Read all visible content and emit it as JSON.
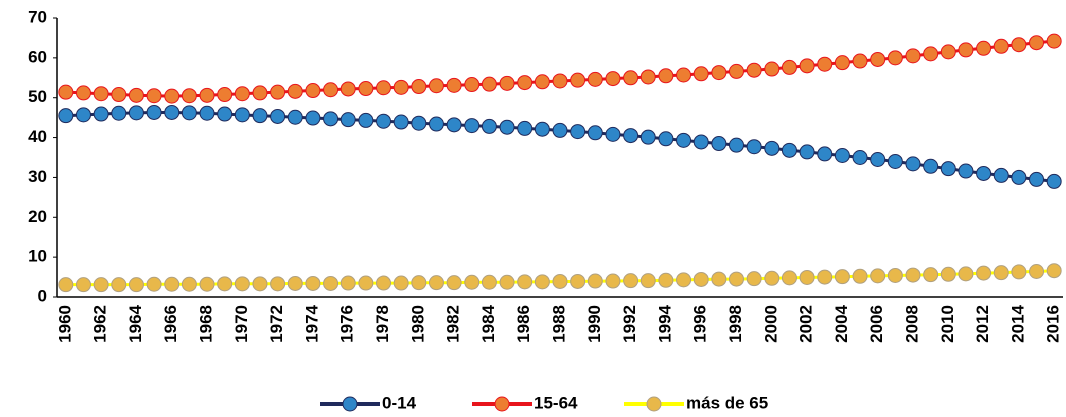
{
  "chart_data": {
    "type": "line",
    "x": [
      1960,
      1961,
      1962,
      1963,
      1964,
      1965,
      1966,
      1967,
      1968,
      1969,
      1970,
      1971,
      1972,
      1973,
      1974,
      1975,
      1976,
      1977,
      1978,
      1979,
      1980,
      1981,
      1982,
      1983,
      1984,
      1985,
      1986,
      1987,
      1988,
      1989,
      1990,
      1991,
      1992,
      1993,
      1994,
      1995,
      1996,
      1997,
      1998,
      1999,
      2000,
      2001,
      2002,
      2003,
      2004,
      2005,
      2006,
      2007,
      2008,
      2009,
      2010,
      2011,
      2012,
      2013,
      2014,
      2015,
      2016
    ],
    "xlim": [
      1959.5,
      2016.5
    ],
    "xticks": [
      1960,
      1962,
      1964,
      1966,
      1968,
      1970,
      1972,
      1974,
      1976,
      1978,
      1980,
      1982,
      1984,
      1986,
      1988,
      1990,
      1992,
      1994,
      1996,
      1998,
      2000,
      2002,
      2004,
      2006,
      2008,
      2010,
      2012,
      2014,
      2016
    ],
    "ylim": [
      0,
      70
    ],
    "yticks": [
      0,
      10,
      20,
      30,
      40,
      50,
      60,
      70
    ],
    "grid": false,
    "legend": "bottom",
    "series": [
      {
        "name": "0-14",
        "color": "#1f2a5c",
        "marker_color": "#2e86c8",
        "values": [
          45.5,
          45.7,
          45.9,
          46.1,
          46.2,
          46.3,
          46.3,
          46.2,
          46.1,
          45.9,
          45.7,
          45.5,
          45.3,
          45.1,
          44.9,
          44.7,
          44.5,
          44.3,
          44.1,
          43.9,
          43.6,
          43.4,
          43.2,
          43.0,
          42.8,
          42.6,
          42.3,
          42.1,
          41.8,
          41.5,
          41.2,
          40.8,
          40.5,
          40.1,
          39.7,
          39.3,
          38.9,
          38.5,
          38.1,
          37.7,
          37.3,
          36.8,
          36.4,
          35.9,
          35.5,
          35.0,
          34.5,
          34.0,
          33.4,
          32.8,
          32.2,
          31.6,
          31.0,
          30.5,
          30.0,
          29.5,
          29.0
        ]
      },
      {
        "name": "15-64",
        "color": "#e8141c",
        "marker_color": "#ed7d31",
        "values": [
          51.4,
          51.2,
          51.0,
          50.8,
          50.6,
          50.5,
          50.4,
          50.5,
          50.6,
          50.8,
          51.0,
          51.2,
          51.4,
          51.6,
          51.8,
          52.0,
          52.2,
          52.3,
          52.5,
          52.6,
          52.8,
          53.0,
          53.1,
          53.3,
          53.4,
          53.6,
          53.8,
          54.0,
          54.2,
          54.4,
          54.6,
          54.8,
          55.0,
          55.2,
          55.5,
          55.7,
          56.0,
          56.3,
          56.6,
          56.9,
          57.2,
          57.6,
          58.0,
          58.4,
          58.8,
          59.2,
          59.6,
          60.0,
          60.5,
          61.0,
          61.5,
          62.0,
          62.4,
          62.9,
          63.3,
          63.8,
          64.2
        ]
      },
      {
        "name": "más de 65",
        "color": "#ffff00",
        "marker_color": "#e8b84a",
        "values": [
          3.1,
          3.1,
          3.1,
          3.1,
          3.1,
          3.2,
          3.2,
          3.2,
          3.2,
          3.3,
          3.3,
          3.3,
          3.3,
          3.4,
          3.4,
          3.4,
          3.5,
          3.5,
          3.5,
          3.5,
          3.6,
          3.6,
          3.6,
          3.7,
          3.7,
          3.7,
          3.8,
          3.8,
          3.9,
          3.9,
          4.0,
          4.0,
          4.1,
          4.1,
          4.2,
          4.3,
          4.4,
          4.5,
          4.5,
          4.6,
          4.7,
          4.8,
          4.9,
          5.0,
          5.1,
          5.2,
          5.3,
          5.4,
          5.5,
          5.6,
          5.7,
          5.8,
          6.0,
          6.1,
          6.3,
          6.4,
          6.6
        ]
      }
    ]
  }
}
